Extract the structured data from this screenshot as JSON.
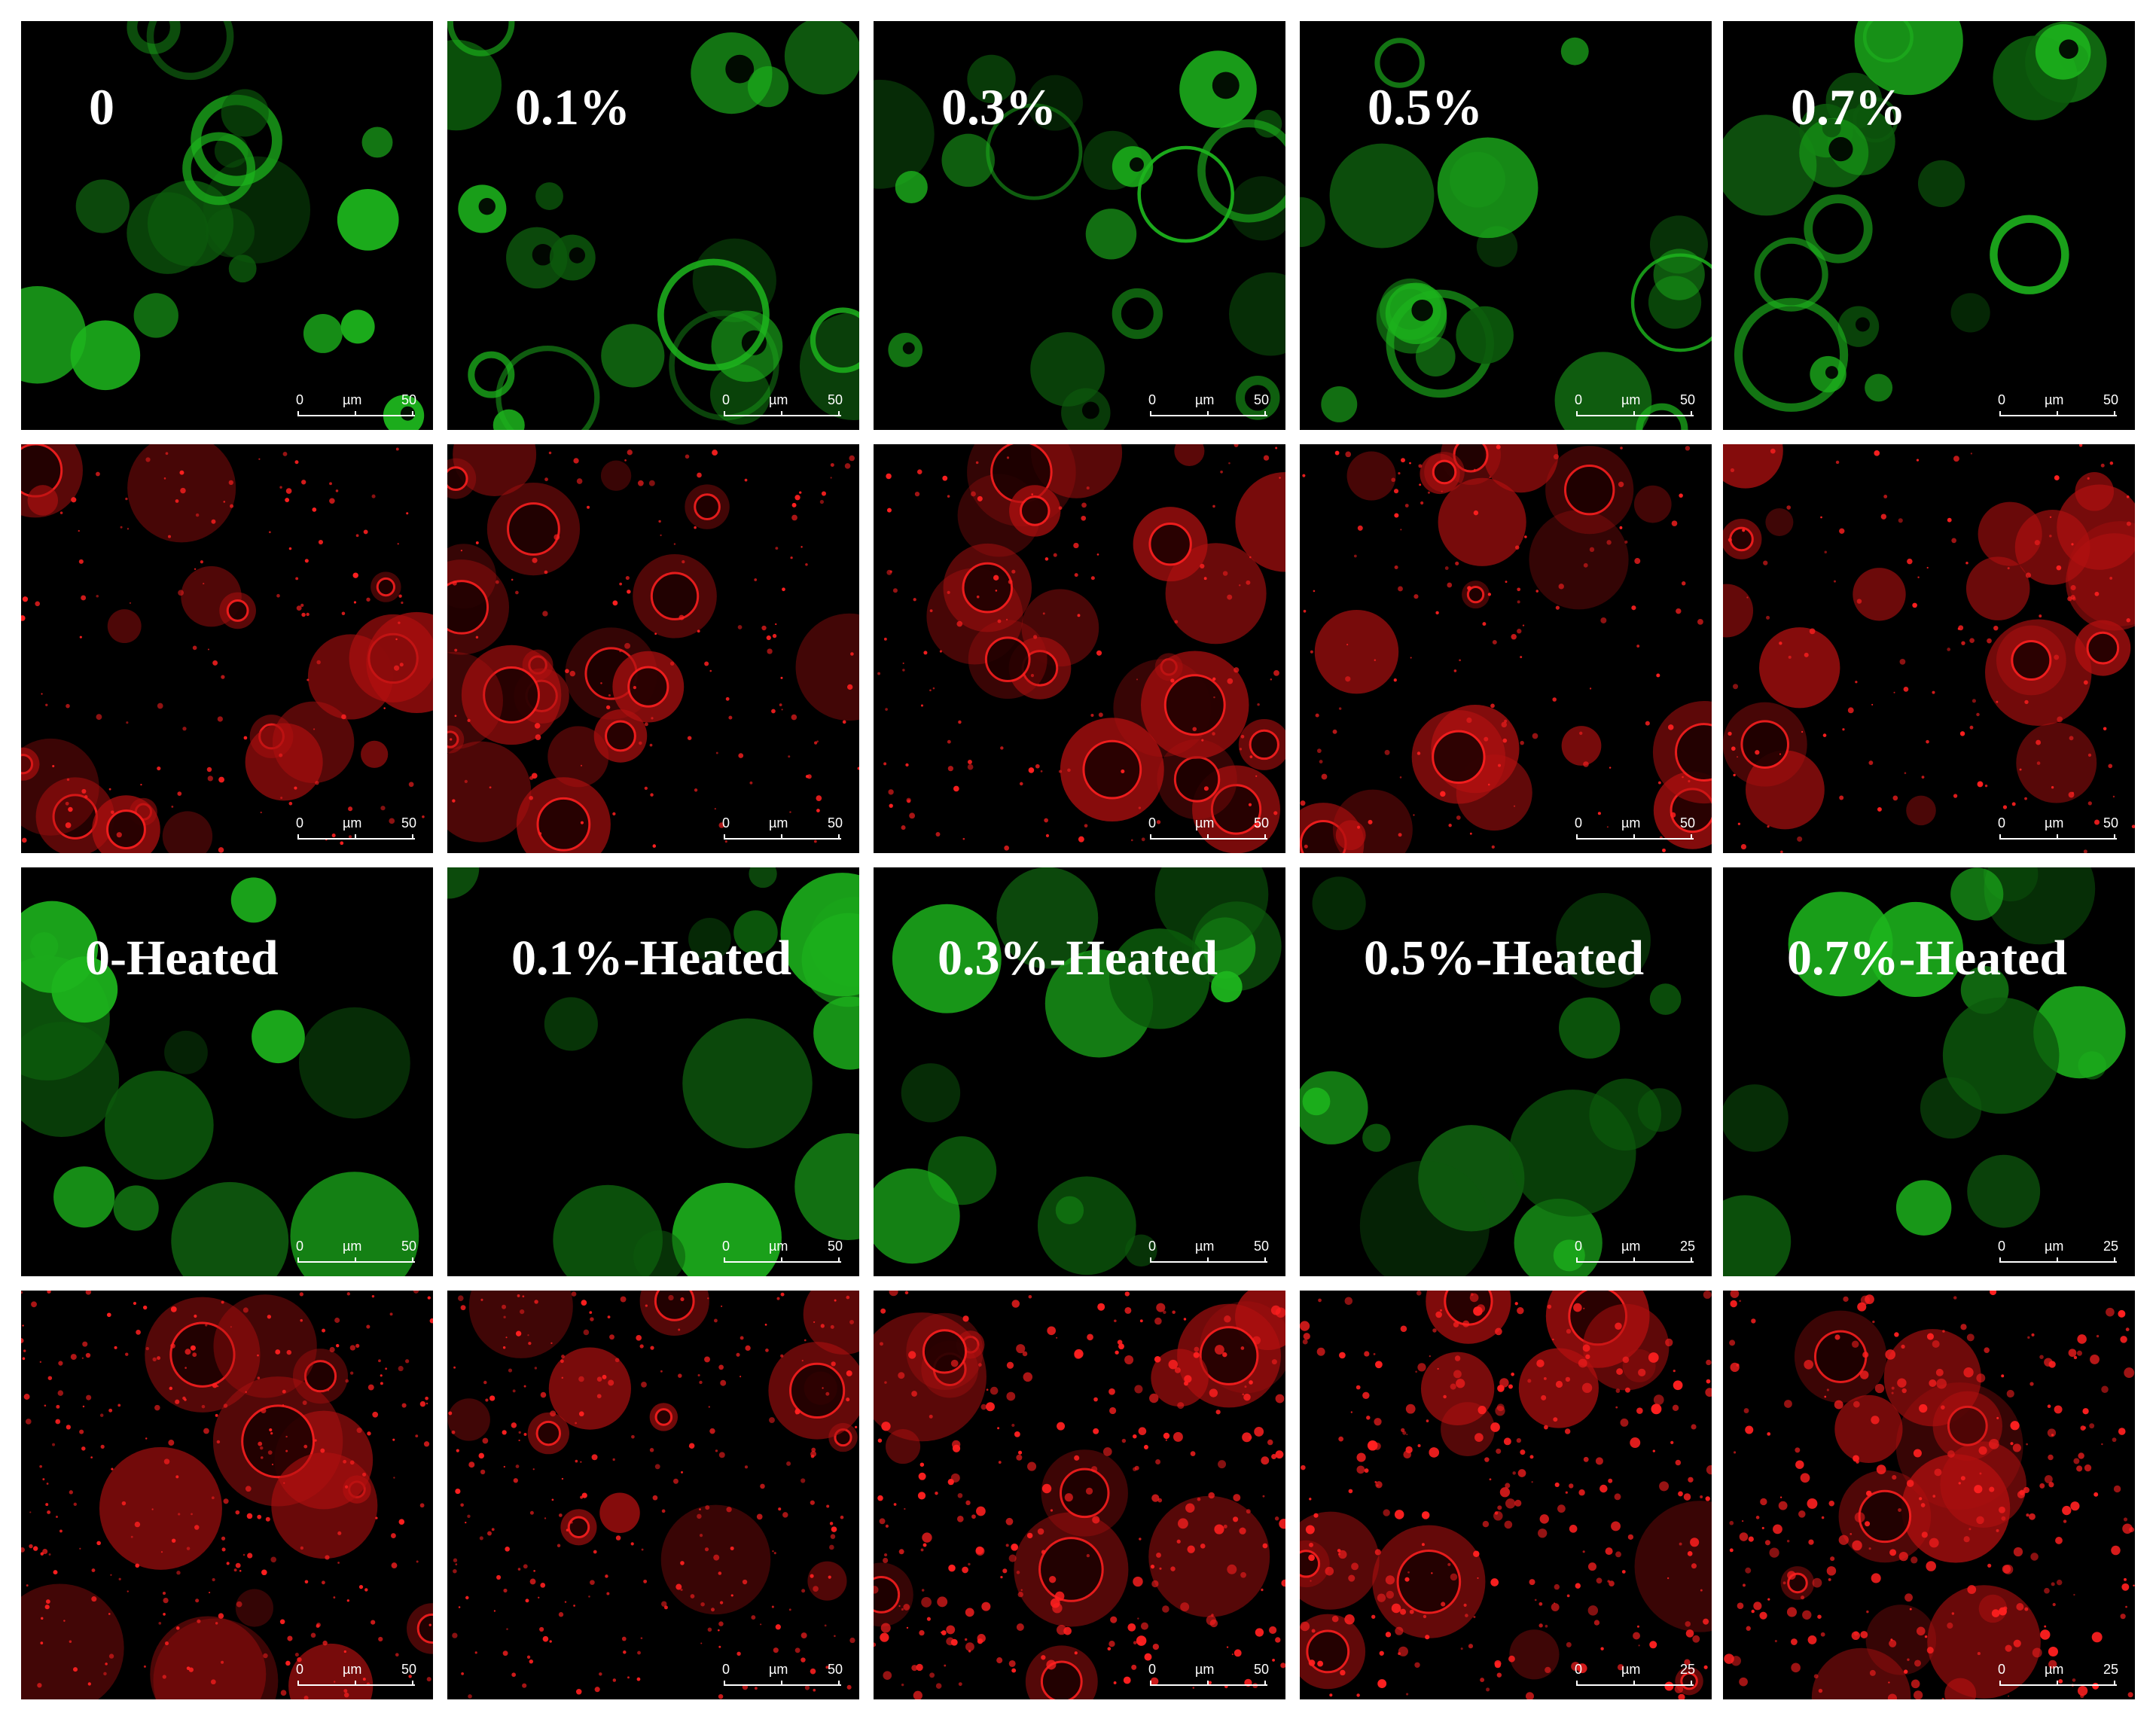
{
  "figure": {
    "rows": [
      {
        "channel": "green",
        "panels": [
          {
            "label": "0",
            "scale": {
              "min": "0",
              "unit": "µm",
              "max": "50"
            }
          },
          {
            "label": "0.1%",
            "scale": {
              "min": "0",
              "unit": "µm",
              "max": "50"
            }
          },
          {
            "label": "0.3%",
            "scale": {
              "min": "0",
              "unit": "µm",
              "max": "50"
            }
          },
          {
            "label": "0.5%",
            "scale": {
              "min": "0",
              "unit": "µm",
              "max": "50"
            }
          },
          {
            "label": "0.7%",
            "scale": {
              "min": "0",
              "unit": "µm",
              "max": "50"
            }
          }
        ]
      },
      {
        "channel": "red",
        "panels": [
          {
            "label": "",
            "scale": {
              "min": "0",
              "unit": "µm",
              "max": "50"
            }
          },
          {
            "label": "",
            "scale": {
              "min": "0",
              "unit": "µm",
              "max": "50"
            }
          },
          {
            "label": "",
            "scale": {
              "min": "0",
              "unit": "µm",
              "max": "50"
            }
          },
          {
            "label": "",
            "scale": {
              "min": "0",
              "unit": "µm",
              "max": "50"
            }
          },
          {
            "label": "",
            "scale": {
              "min": "0",
              "unit": "µm",
              "max": "50"
            }
          }
        ]
      },
      {
        "channel": "green",
        "panels": [
          {
            "label": "0-Heated",
            "scale": {
              "min": "0",
              "unit": "µm",
              "max": "50"
            }
          },
          {
            "label": "0.1%-Heated",
            "scale": {
              "min": "0",
              "unit": "µm",
              "max": "50"
            }
          },
          {
            "label": "0.3%-Heated",
            "scale": {
              "min": "0",
              "unit": "µm",
              "max": "50"
            }
          },
          {
            "label": "0.5%-Heated",
            "scale": {
              "min": "0",
              "unit": "µm",
              "max": "25"
            }
          },
          {
            "label": "0.7%-Heated",
            "scale": {
              "min": "0",
              "unit": "µm",
              "max": "25"
            }
          }
        ]
      },
      {
        "channel": "red",
        "panels": [
          {
            "label": "",
            "scale": {
              "min": "0",
              "unit": "µm",
              "max": "50"
            }
          },
          {
            "label": "",
            "scale": {
              "min": "0",
              "unit": "µm",
              "max": "50"
            }
          },
          {
            "label": "",
            "scale": {
              "min": "0",
              "unit": "µm",
              "max": "50"
            }
          },
          {
            "label": "",
            "scale": {
              "min": "0",
              "unit": "µm",
              "max": "25"
            }
          },
          {
            "label": "",
            "scale": {
              "min": "0",
              "unit": "µm",
              "max": "25"
            }
          }
        ]
      }
    ]
  },
  "colors": {
    "background": "#000000",
    "green_droplet": "#1db51d",
    "green_dim": "#0c5a0c",
    "red_droplet": "#b21010",
    "red_bright": "#ff2020",
    "separator": "#ffffff",
    "label_text": "#ffffff"
  }
}
